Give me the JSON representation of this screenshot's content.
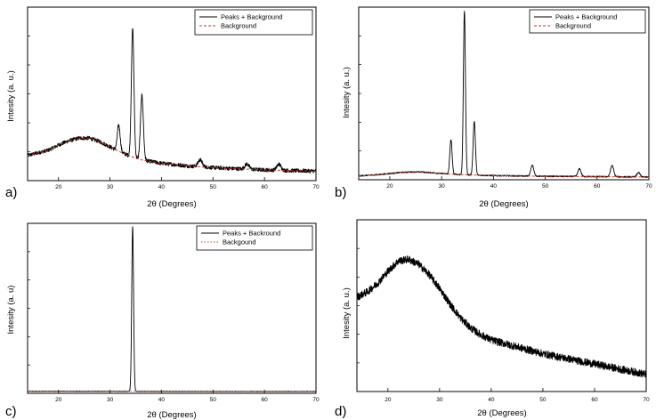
{
  "chart_data": [
    {
      "id": "a",
      "type": "line",
      "panel_label": "a)",
      "xlabel": "2θ (Degrees)",
      "ylabel": "Intesity (a. u.)",
      "xlim": [
        14,
        70
      ],
      "ylim": [
        0,
        100
      ],
      "xticks": [
        20,
        30,
        40,
        50,
        60,
        70
      ],
      "yticks": [],
      "legend": {
        "position": "top-right",
        "entries": [
          "Peaks + Background",
          "Background"
        ]
      },
      "background_curve": [
        [
          14,
          14.5
        ],
        [
          18,
          17.5
        ],
        [
          20,
          20.5
        ],
        [
          22,
          23
        ],
        [
          24,
          24.5
        ],
        [
          26,
          24.5
        ],
        [
          28,
          22.5
        ],
        [
          30,
          19.5
        ],
        [
          32,
          16.5
        ],
        [
          34,
          14
        ],
        [
          36,
          12
        ],
        [
          40,
          10
        ],
        [
          45,
          8.5
        ],
        [
          50,
          7.5
        ],
        [
          55,
          6.8
        ],
        [
          60,
          6.2
        ],
        [
          65,
          5.8
        ],
        [
          70,
          5.5
        ]
      ],
      "peaks": [
        {
          "x": 31.7,
          "height": 15,
          "width": 0.28
        },
        {
          "x": 34.4,
          "height": 74,
          "width": 0.25
        },
        {
          "x": 36.2,
          "height": 37,
          "width": 0.28
        },
        {
          "x": 47.5,
          "height": 4,
          "width": 0.4
        },
        {
          "x": 56.6,
          "height": 3,
          "width": 0.4
        },
        {
          "x": 62.8,
          "height": 3.5,
          "width": 0.4
        }
      ],
      "noise": 1.1,
      "series": [
        {
          "name": "Peaks + Background",
          "color": "#000000",
          "style": "solid"
        },
        {
          "name": "Background",
          "color": "#c0392b",
          "style": "dashed"
        }
      ]
    },
    {
      "id": "b",
      "type": "line",
      "panel_label": "b)",
      "xlabel": "2θ (Degrees)",
      "ylabel": "Intesity (a. u.)",
      "xlim": [
        14,
        70
      ],
      "ylim": [
        0,
        100
      ],
      "xticks": [
        20,
        30,
        40,
        50,
        60,
        70
      ],
      "yticks": [],
      "legend": {
        "position": "top-right",
        "entries": [
          "Peaks + Background",
          "Background"
        ]
      },
      "background_curve": [
        [
          14,
          2.2
        ],
        [
          18,
          3
        ],
        [
          20,
          3.6
        ],
        [
          22,
          4.2
        ],
        [
          24,
          4.5
        ],
        [
          26,
          4.5
        ],
        [
          28,
          4.1
        ],
        [
          30,
          3.6
        ],
        [
          32,
          3.2
        ],
        [
          35,
          2.8
        ],
        [
          40,
          2.4
        ],
        [
          50,
          2.0
        ],
        [
          60,
          1.8
        ],
        [
          70,
          1.6
        ]
      ],
      "peaks": [
        {
          "x": 31.8,
          "height": 20,
          "width": 0.22
        },
        {
          "x": 34.4,
          "height": 95,
          "width": 0.2
        },
        {
          "x": 36.3,
          "height": 31,
          "width": 0.22
        },
        {
          "x": 47.5,
          "height": 6.5,
          "width": 0.28
        },
        {
          "x": 56.6,
          "height": 4.5,
          "width": 0.3
        },
        {
          "x": 62.9,
          "height": 6.5,
          "width": 0.3
        },
        {
          "x": 68.0,
          "height": 2.5,
          "width": 0.3
        }
      ],
      "noise": 0.35,
      "series": [
        {
          "name": "Peaks + Background",
          "color": "#000000",
          "style": "solid"
        },
        {
          "name": "Background",
          "color": "#c0392b",
          "style": "dashed"
        }
      ]
    },
    {
      "id": "c",
      "type": "line",
      "panel_label": "c)",
      "xlabel": "2θ (Degrees)",
      "ylabel": "Intesity (a. u)",
      "xlim": [
        14,
        70
      ],
      "ylim": [
        0,
        100
      ],
      "xticks": [
        20,
        30,
        40,
        50,
        60,
        70
      ],
      "yticks": [],
      "legend": {
        "position": "top-right",
        "entries": [
          "Peaks + Backround",
          "Backgound"
        ]
      },
      "background_curve": [
        [
          14,
          1.2
        ],
        [
          30,
          1.2
        ],
        [
          50,
          1.1
        ],
        [
          70,
          1.1
        ]
      ],
      "peaks": [
        {
          "x": 34.4,
          "height": 97,
          "width": 0.18
        }
      ],
      "noise": 0.12,
      "series": [
        {
          "name": "Peaks + Backround",
          "color": "#000000",
          "style": "solid"
        },
        {
          "name": "Backgound",
          "color": "#c0392b",
          "style": "dotted"
        }
      ]
    },
    {
      "id": "d",
      "type": "line",
      "panel_label": "d)",
      "xlabel": "2θ (Degrees)",
      "ylabel": "Intesity (a. u.)",
      "xlim": [
        14,
        70
      ],
      "ylim": [
        0,
        100
      ],
      "xticks": [
        20,
        30,
        40,
        50,
        60,
        70
      ],
      "yticks": [],
      "legend": null,
      "background_curve": [
        [
          14,
          55
        ],
        [
          16,
          58
        ],
        [
          18,
          63
        ],
        [
          20,
          70
        ],
        [
          22,
          76
        ],
        [
          24,
          77
        ],
        [
          26,
          74
        ],
        [
          28,
          68
        ],
        [
          30,
          60
        ],
        [
          32,
          51
        ],
        [
          34,
          43
        ],
        [
          36,
          37
        ],
        [
          38,
          33
        ],
        [
          40,
          30
        ],
        [
          45,
          26
        ],
        [
          50,
          22
        ],
        [
          55,
          19
        ],
        [
          60,
          16
        ],
        [
          65,
          13
        ],
        [
          70,
          10
        ]
      ],
      "peaks": [],
      "noise": 2.2,
      "series": [
        {
          "name": "",
          "color": "#000000",
          "style": "solid"
        }
      ]
    }
  ]
}
